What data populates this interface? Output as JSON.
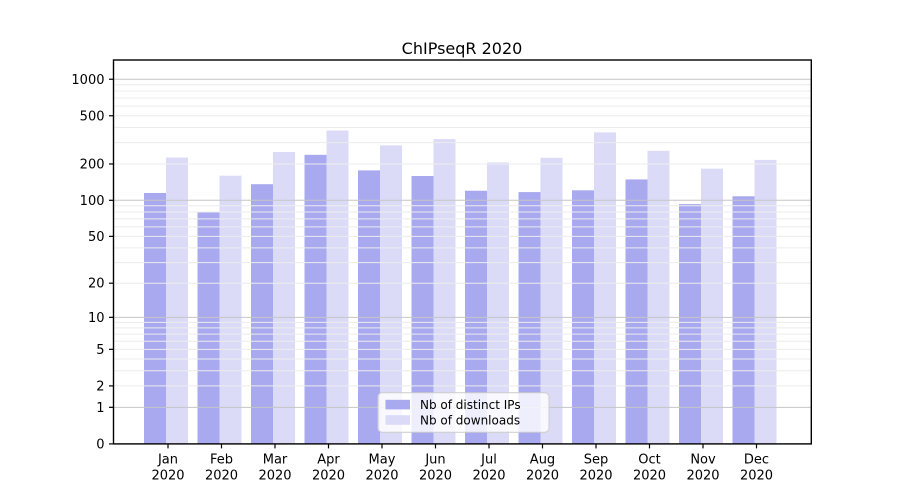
{
  "chart_data": {
    "type": "bar",
    "title": "ChIPseqR 2020",
    "categories": [
      "Jan",
      "Feb",
      "Mar",
      "Apr",
      "May",
      "Jun",
      "Jul",
      "Aug",
      "Sep",
      "Oct",
      "Nov",
      "Dec"
    ],
    "x_year_label": "2020",
    "series": [
      {
        "name": "Nb of distinct IPs",
        "color": "#a9a9f0",
        "values": [
          115,
          80,
          136,
          238,
          177,
          159,
          120,
          117,
          121,
          149,
          93,
          108
        ]
      },
      {
        "name": "Nb of downloads",
        "color": "#dbdbf8",
        "values": [
          226,
          160,
          251,
          378,
          285,
          321,
          206,
          225,
          365,
          257,
          183,
          216
        ]
      }
    ],
    "yscale": "log1p",
    "yticks": [
      0,
      1,
      2,
      5,
      10,
      20,
      50,
      100,
      200,
      500,
      1000
    ],
    "ylim": [
      0,
      1440
    ],
    "grid": true,
    "legend_position": "lower-center"
  },
  "colors": {
    "spine": "#000000",
    "major_grid": "#c6c6c6",
    "minor_grid": "#ececec",
    "legend_border": "#cccccc",
    "legend_bg": "rgba(255,255,255,0.8)"
  }
}
